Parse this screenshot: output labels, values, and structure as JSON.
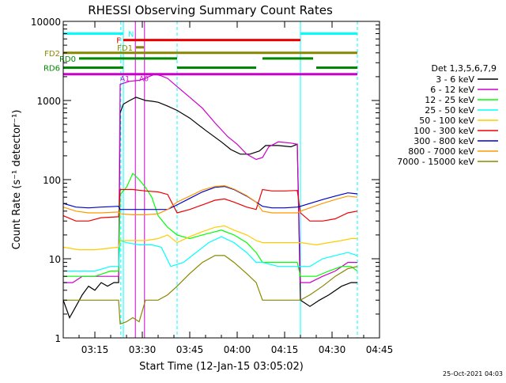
{
  "chart_data": {
    "type": "line",
    "title": "RHESSI Observing Summary Count Rates",
    "xlabel": "Start Time (12-Jan-15 03:05:02)",
    "ylabel": "Count Rate (s⁻¹ detector⁻¹)",
    "y_scale": "log",
    "ylim": [
      1,
      10000
    ],
    "xlim_min": [
      0,
      100
    ],
    "x_unit": "minutes after 03:05:02",
    "x_ticks": [
      {
        "label": "03:15",
        "t": 10
      },
      {
        "label": "03:30",
        "t": 25
      },
      {
        "label": "03:45",
        "t": 40
      },
      {
        "label": "04:00",
        "t": 55
      },
      {
        "label": "04:15",
        "t": 70
      },
      {
        "label": "04:30",
        "t": 85
      },
      {
        "label": "04:45",
        "t": 100
      }
    ],
    "y_ticks": [
      {
        "label": "1",
        "v": 1
      },
      {
        "label": "10",
        "v": 10
      },
      {
        "label": "100",
        "v": 100
      },
      {
        "label": "1000",
        "v": 1000
      },
      {
        "label": "10000",
        "v": 10000
      }
    ],
    "legend_title": "Det 1,3,5,6,7,9",
    "legend_position": "right",
    "series": [
      {
        "name": "3 - 6 keV",
        "color": "#000000",
        "points": [
          [
            0,
            3
          ],
          [
            2,
            1.8
          ],
          [
            4,
            2.5
          ],
          [
            6,
            3.5
          ],
          [
            8,
            4.5
          ],
          [
            10,
            4
          ],
          [
            12,
            5
          ],
          [
            14,
            4.5
          ],
          [
            16,
            5
          ],
          [
            17.5,
            5
          ],
          [
            18,
            700
          ],
          [
            19,
            900
          ],
          [
            21,
            1000
          ],
          [
            23,
            1100
          ],
          [
            24.5,
            1050
          ],
          [
            26,
            1000
          ],
          [
            28,
            980
          ],
          [
            30,
            950
          ],
          [
            33,
            850
          ],
          [
            36,
            750
          ],
          [
            40,
            600
          ],
          [
            45,
            420
          ],
          [
            50,
            300
          ],
          [
            53,
            240
          ],
          [
            56,
            210
          ],
          [
            59,
            210
          ],
          [
            62,
            230
          ],
          [
            64,
            270
          ],
          [
            68,
            270
          ],
          [
            72,
            260
          ],
          [
            74,
            280
          ],
          [
            75,
            3
          ],
          [
            78,
            2.5
          ],
          [
            81,
            3
          ],
          [
            84,
            3.5
          ],
          [
            88,
            4.5
          ],
          [
            91,
            5
          ],
          [
            93,
            5
          ]
        ]
      },
      {
        "name": "6 - 12 keV",
        "color": "#cc00cc",
        "points": [
          [
            0,
            5
          ],
          [
            3,
            5
          ],
          [
            6,
            6
          ],
          [
            10,
            6
          ],
          [
            14,
            6
          ],
          [
            17.5,
            6
          ],
          [
            18,
            1600
          ],
          [
            21,
            1750
          ],
          [
            24,
            1800
          ],
          [
            26,
            1900
          ],
          [
            27,
            2000
          ],
          [
            29,
            2150
          ],
          [
            31,
            2050
          ],
          [
            33,
            1900
          ],
          [
            36,
            1500
          ],
          [
            40,
            1100
          ],
          [
            44,
            800
          ],
          [
            48,
            520
          ],
          [
            52,
            350
          ],
          [
            55,
            280
          ],
          [
            58,
            210
          ],
          [
            61,
            180
          ],
          [
            63,
            190
          ],
          [
            65,
            260
          ],
          [
            68,
            300
          ],
          [
            72,
            290
          ],
          [
            74,
            280
          ],
          [
            75,
            5
          ],
          [
            78,
            5
          ],
          [
            82,
            6
          ],
          [
            86,
            7
          ],
          [
            90,
            9
          ],
          [
            93,
            9
          ]
        ]
      },
      {
        "name": "12 - 25 keV",
        "color": "#00ff00",
        "points": [
          [
            0,
            6
          ],
          [
            5,
            6
          ],
          [
            10,
            6
          ],
          [
            15,
            7
          ],
          [
            17.5,
            7
          ],
          [
            18,
            65
          ],
          [
            20,
            80
          ],
          [
            22,
            120
          ],
          [
            24,
            100
          ],
          [
            26,
            80
          ],
          [
            28,
            60
          ],
          [
            30,
            35
          ],
          [
            33,
            25
          ],
          [
            36,
            20
          ],
          [
            40,
            18
          ],
          [
            44,
            20
          ],
          [
            48,
            22
          ],
          [
            50,
            23
          ],
          [
            54,
            20
          ],
          [
            58,
            16
          ],
          [
            61,
            12
          ],
          [
            63,
            9
          ],
          [
            66,
            9
          ],
          [
            70,
            9
          ],
          [
            74,
            9
          ],
          [
            75,
            6
          ],
          [
            80,
            6
          ],
          [
            84,
            7
          ],
          [
            88,
            8
          ],
          [
            91,
            8
          ],
          [
            93,
            7
          ]
        ]
      },
      {
        "name": "25 - 50 keV",
        "color": "#00ffff",
        "points": [
          [
            0,
            7
          ],
          [
            5,
            7
          ],
          [
            10,
            7
          ],
          [
            15,
            8
          ],
          [
            17.5,
            8
          ],
          [
            18,
            17
          ],
          [
            20,
            16
          ],
          [
            24,
            15
          ],
          [
            28,
            15
          ],
          [
            31,
            14
          ],
          [
            34,
            8
          ],
          [
            38,
            9
          ],
          [
            42,
            12
          ],
          [
            46,
            16
          ],
          [
            50,
            19
          ],
          [
            54,
            16
          ],
          [
            58,
            12
          ],
          [
            61,
            9
          ],
          [
            63,
            9
          ],
          [
            68,
            8
          ],
          [
            72,
            8
          ],
          [
            75,
            8
          ],
          [
            78,
            8
          ],
          [
            82,
            10
          ],
          [
            86,
            11
          ],
          [
            90,
            12
          ],
          [
            93,
            11
          ]
        ]
      },
      {
        "name": "50 - 100 keV",
        "color": "#ffcc00",
        "points": [
          [
            0,
            14
          ],
          [
            5,
            13
          ],
          [
            10,
            13
          ],
          [
            17.5,
            14
          ],
          [
            18,
            17
          ],
          [
            22,
            17
          ],
          [
            26,
            17
          ],
          [
            30,
            18
          ],
          [
            33,
            20
          ],
          [
            36,
            16
          ],
          [
            40,
            19
          ],
          [
            44,
            22
          ],
          [
            48,
            25
          ],
          [
            51,
            26
          ],
          [
            54,
            23
          ],
          [
            58,
            20
          ],
          [
            61,
            17
          ],
          [
            63,
            16
          ],
          [
            68,
            16
          ],
          [
            72,
            16
          ],
          [
            75,
            16
          ],
          [
            80,
            15
          ],
          [
            84,
            16
          ],
          [
            88,
            17
          ],
          [
            91,
            18
          ],
          [
            93,
            18
          ]
        ]
      },
      {
        "name": "100 - 300 keV",
        "color": "#ee0000",
        "points": [
          [
            0,
            35
          ],
          [
            4,
            30
          ],
          [
            8,
            30
          ],
          [
            12,
            33
          ],
          [
            17.5,
            34
          ],
          [
            18,
            75
          ],
          [
            22,
            75
          ],
          [
            26,
            72
          ],
          [
            30,
            70
          ],
          [
            33,
            65
          ],
          [
            36,
            38
          ],
          [
            40,
            42
          ],
          [
            44,
            48
          ],
          [
            48,
            55
          ],
          [
            51,
            57
          ],
          [
            54,
            52
          ],
          [
            58,
            45
          ],
          [
            61,
            42
          ],
          [
            63,
            75
          ],
          [
            66,
            72
          ],
          [
            70,
            72
          ],
          [
            74,
            73
          ],
          [
            75,
            38
          ],
          [
            78,
            30
          ],
          [
            82,
            30
          ],
          [
            86,
            32
          ],
          [
            90,
            38
          ],
          [
            93,
            40
          ]
        ]
      },
      {
        "name": "300 - 800 keV",
        "color": "#0000cc",
        "points": [
          [
            0,
            50
          ],
          [
            4,
            45
          ],
          [
            8,
            44
          ],
          [
            12,
            45
          ],
          [
            17.5,
            46
          ],
          [
            18,
            42
          ],
          [
            22,
            42
          ],
          [
            26,
            42
          ],
          [
            30,
            42
          ],
          [
            33,
            42
          ],
          [
            36,
            48
          ],
          [
            40,
            58
          ],
          [
            44,
            70
          ],
          [
            48,
            80
          ],
          [
            51,
            82
          ],
          [
            54,
            75
          ],
          [
            58,
            62
          ],
          [
            61,
            52
          ],
          [
            63,
            46
          ],
          [
            66,
            44
          ],
          [
            70,
            44
          ],
          [
            74,
            45
          ],
          [
            75,
            46
          ],
          [
            78,
            50
          ],
          [
            82,
            56
          ],
          [
            86,
            62
          ],
          [
            90,
            68
          ],
          [
            93,
            66
          ]
        ]
      },
      {
        "name": "800 - 7000 keV",
        "color": "#ff9900",
        "points": [
          [
            0,
            45
          ],
          [
            4,
            40
          ],
          [
            8,
            38
          ],
          [
            12,
            38
          ],
          [
            17.5,
            39
          ],
          [
            18,
            37
          ],
          [
            22,
            36
          ],
          [
            26,
            36
          ],
          [
            30,
            37
          ],
          [
            33,
            42
          ],
          [
            36,
            52
          ],
          [
            40,
            62
          ],
          [
            44,
            74
          ],
          [
            48,
            82
          ],
          [
            51,
            84
          ],
          [
            54,
            76
          ],
          [
            58,
            63
          ],
          [
            61,
            52
          ],
          [
            63,
            40
          ],
          [
            66,
            38
          ],
          [
            70,
            38
          ],
          [
            74,
            38
          ],
          [
            75,
            40
          ],
          [
            78,
            44
          ],
          [
            82,
            50
          ],
          [
            86,
            56
          ],
          [
            90,
            62
          ],
          [
            93,
            60
          ]
        ]
      },
      {
        "name": "7000 - 15000 keV",
        "color": "#888800",
        "points": [
          [
            0,
            3
          ],
          [
            4,
            3
          ],
          [
            8,
            3
          ],
          [
            12,
            3
          ],
          [
            17.5,
            3
          ],
          [
            18,
            1.5
          ],
          [
            20,
            1.6
          ],
          [
            22,
            1.8
          ],
          [
            24,
            1.6
          ],
          [
            26,
            3
          ],
          [
            28,
            3
          ],
          [
            30,
            3
          ],
          [
            33,
            3.5
          ],
          [
            36,
            4.5
          ],
          [
            40,
            6.5
          ],
          [
            44,
            9
          ],
          [
            48,
            11
          ],
          [
            51,
            11
          ],
          [
            54,
            9
          ],
          [
            58,
            6.5
          ],
          [
            61,
            5
          ],
          [
            63,
            3
          ],
          [
            66,
            3
          ],
          [
            70,
            3
          ],
          [
            74,
            3
          ],
          [
            75,
            3
          ],
          [
            78,
            3.5
          ],
          [
            82,
            4.5
          ],
          [
            86,
            6
          ],
          [
            90,
            7.5
          ],
          [
            93,
            8
          ]
        ]
      }
    ],
    "flag_bars": [
      {
        "label": "N",
        "color": "#00ffff",
        "y_value": 7000,
        "segments": [
          [
            0,
            19
          ],
          [
            75,
            93
          ]
        ]
      },
      {
        "label": "F",
        "color": "#ee0000",
        "y_value": 5800,
        "segments": [
          [
            19,
            75
          ]
        ]
      },
      {
        "label": "FD1",
        "color": "#888800",
        "y_value": 4700,
        "segments": [
          [
            23,
            25.5
          ]
        ]
      },
      {
        "label": "FD2",
        "color": "#888800",
        "y_value": 4000,
        "segments": [
          [
            0,
            93
          ]
        ]
      },
      {
        "label": "RD0",
        "color": "#008800",
        "y_value": 3400,
        "segments": [
          [
            5,
            36
          ],
          [
            63,
            79
          ]
        ]
      },
      {
        "label": "RD6",
        "color": "#008800",
        "y_value": 2600,
        "segments": [
          [
            0,
            19
          ],
          [
            36,
            61
          ],
          [
            80,
            93
          ]
        ]
      },
      {
        "label": "",
        "color": "#cc00cc",
        "y_value": 2150,
        "segments": [
          [
            0,
            93
          ]
        ]
      }
    ],
    "attenuator_labels": [
      {
        "label": "A1",
        "t": 19.5
      },
      {
        "label": "A0",
        "t": 25.5
      }
    ],
    "vlines": [
      {
        "t": 0,
        "color": "#00ffff",
        "style": "dashed"
      },
      {
        "t": 18.2,
        "color": "#00ffff",
        "style": "dashed"
      },
      {
        "t": 19,
        "color": "#00ffff",
        "style": "solid"
      },
      {
        "t": 22.8,
        "color": "#cc00cc",
        "style": "solid"
      },
      {
        "t": 25.7,
        "color": "#cc00cc",
        "style": "solid"
      },
      {
        "t": 36,
        "color": "#00ffff",
        "style": "dashed"
      },
      {
        "t": 75,
        "color": "#00ffff",
        "style": "solid"
      },
      {
        "t": 93,
        "color": "#00ffff",
        "style": "dashed"
      }
    ],
    "timestamp": "25-Oct-2021 04:03"
  }
}
